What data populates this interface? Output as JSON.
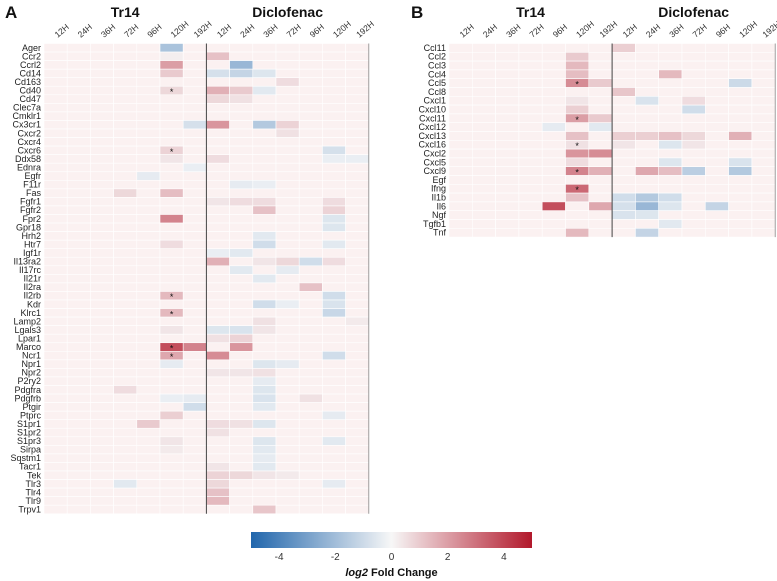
{
  "chart_data": [
    {
      "type": "heatmap",
      "panel": "A",
      "groups": [
        "Tr14",
        "Diclofenac"
      ],
      "columns": [
        "12H",
        "24H",
        "36H",
        "72H",
        "96H",
        "120H",
        "192H",
        "12H",
        "24H",
        "36H",
        "72H",
        "96H",
        "120H",
        "192H"
      ],
      "rows": [
        "Ager",
        "Ccr2",
        "Ccrl2",
        "Cd14",
        "Cd163",
        "Cd40",
        "Cd47",
        "Clec7a",
        "Cmklr1",
        "Cx3cr1",
        "Cxcr2",
        "Cxcr4",
        "Cxcr6",
        "Ddx58",
        "Ednra",
        "Egfr",
        "F11r",
        "Fas",
        "Fgfr1",
        "Fgfr2",
        "Fpr2",
        "Gpr18",
        "Hrh2",
        "Htr7",
        "Igf1r",
        "Il13ra2",
        "Il17rc",
        "Il21r",
        "Il2ra",
        "Il2rb",
        "Kdr",
        "Klrc1",
        "Lamp2",
        "Lgals3",
        "Lpar1",
        "Marco",
        "Ncr1",
        "Npr1",
        "Npr2",
        "P2ry2",
        "Pdgfra",
        "Pdgfrb",
        "Ptgir",
        "Ptprc",
        "S1pr1",
        "S1pr2",
        "S1pr3",
        "Sirpa",
        "Sqstm1",
        "Tacr1",
        "Tek",
        "Tlr3",
        "Tlr4",
        "Tlr9",
        "Trpv1"
      ],
      "values": [
        [
          0,
          0,
          0,
          0,
          0,
          -1.8,
          0,
          0,
          0,
          0,
          0,
          0,
          0,
          0
        ],
        [
          0,
          0,
          0,
          0,
          0,
          0.2,
          0,
          1.2,
          0,
          0,
          0,
          0,
          0,
          0
        ],
        [
          0,
          0,
          0,
          0,
          0,
          2.0,
          0,
          0,
          -2.2,
          0,
          0,
          0,
          0,
          0
        ],
        [
          0,
          0,
          0,
          0,
          0,
          1.0,
          0,
          -0.8,
          -1.2,
          -0.6,
          0,
          0,
          0,
          0
        ],
        [
          0,
          0,
          0,
          0,
          0,
          0,
          0,
          0,
          0,
          0,
          0.6,
          0,
          0,
          0
        ],
        [
          0,
          0,
          0,
          0,
          0,
          0.7,
          0,
          1.6,
          1.0,
          -0.5,
          0,
          0,
          0,
          0
        ],
        [
          0,
          0,
          0,
          0,
          0,
          0,
          0,
          0.7,
          0.5,
          0,
          0,
          0,
          0,
          0
        ],
        [
          0,
          0,
          0,
          0,
          0,
          0,
          0,
          0,
          0,
          0,
          0,
          0,
          0,
          0
        ],
        [
          0,
          0,
          0,
          0,
          0,
          0,
          0,
          0,
          0,
          0,
          0,
          0,
          0,
          0
        ],
        [
          0,
          0,
          0,
          0,
          0,
          0,
          -0.8,
          2.2,
          0,
          -1.6,
          0.8,
          0,
          0,
          0
        ],
        [
          0,
          0,
          0,
          0,
          0,
          0,
          0,
          0,
          0,
          0,
          0.5,
          0,
          0,
          0
        ],
        [
          0,
          0,
          0,
          0,
          0,
          0,
          0,
          0,
          0,
          0,
          0,
          0,
          0,
          0
        ],
        [
          0,
          0,
          0,
          0,
          0,
          0.8,
          0,
          0,
          0,
          0,
          0,
          0,
          -0.8,
          0
        ],
        [
          0,
          0,
          0,
          0,
          0,
          0.4,
          0,
          0.6,
          0,
          0,
          0,
          0,
          -0.3,
          -0.3
        ],
        [
          0,
          0,
          0,
          0,
          0,
          0,
          -0.3,
          0,
          0,
          0,
          0,
          0,
          0,
          0
        ],
        [
          0,
          0,
          0,
          0,
          -0.4,
          0,
          0,
          0,
          0,
          0,
          0,
          0,
          0,
          0
        ],
        [
          0,
          0,
          0,
          0,
          0,
          0,
          0,
          0,
          -0.4,
          -0.3,
          0,
          0,
          0,
          0
        ],
        [
          0,
          0,
          0,
          0.7,
          0,
          1.3,
          0,
          0,
          0,
          0,
          0,
          0,
          0,
          0
        ],
        [
          0,
          0,
          0,
          0,
          0,
          0,
          0,
          0.4,
          0.6,
          0.6,
          0,
          0,
          0.6,
          0
        ],
        [
          0,
          0,
          0,
          0,
          0,
          0,
          0,
          0,
          0,
          1.2,
          0,
          0,
          0.8,
          0
        ],
        [
          0,
          0,
          0,
          0,
          0,
          2.6,
          0,
          0,
          0,
          0,
          0,
          0,
          -0.6,
          0
        ],
        [
          0,
          0,
          0,
          0,
          0,
          0,
          0,
          0,
          0,
          0,
          0,
          0,
          -0.6,
          0
        ],
        [
          0,
          0,
          0,
          0,
          0,
          0,
          0,
          0,
          0,
          -0.5,
          0,
          0,
          0,
          0
        ],
        [
          0,
          0,
          0,
          0,
          0,
          0.6,
          0,
          0,
          0,
          -0.9,
          0,
          0,
          -0.5,
          0
        ],
        [
          0,
          0,
          0,
          0,
          0,
          0,
          0,
          -0.3,
          -0.5,
          0,
          0,
          0,
          0,
          0
        ],
        [
          0,
          0,
          0,
          0,
          0,
          0,
          0,
          1.6,
          0,
          0.4,
          0.7,
          -0.9,
          0.6,
          0
        ],
        [
          0,
          0,
          0,
          0,
          0,
          0,
          0,
          0,
          -0.5,
          0,
          -0.4,
          0,
          0,
          0
        ],
        [
          0,
          0,
          0,
          0,
          0,
          0,
          0,
          0,
          0,
          -0.5,
          0,
          0,
          0,
          0
        ],
        [
          0,
          0,
          0,
          0,
          0,
          0,
          0,
          0,
          0,
          0,
          0,
          1.2,
          0,
          0
        ],
        [
          0,
          0,
          0,
          0,
          0,
          1.4,
          0,
          0,
          0,
          0,
          0,
          0,
          -0.9,
          0
        ],
        [
          0,
          0,
          0,
          0,
          0,
          0,
          0,
          0,
          0,
          -0.9,
          -0.3,
          0,
          -0.7,
          0
        ],
        [
          0,
          0,
          0,
          0,
          0,
          1.4,
          0,
          0,
          0,
          0,
          0,
          0,
          -1.1,
          0
        ],
        [
          0,
          0,
          0,
          0,
          0,
          0,
          0,
          0,
          0,
          0.5,
          0,
          0,
          0,
          0.3
        ],
        [
          0,
          0,
          0,
          0,
          0,
          0.4,
          0,
          -0.6,
          -0.7,
          0.4,
          0,
          0,
          0,
          0
        ],
        [
          0,
          0,
          0,
          0,
          0,
          0,
          0,
          0.5,
          0.8,
          0,
          0,
          0,
          0,
          0
        ],
        [
          0,
          0,
          0,
          0,
          0,
          3.8,
          2.6,
          0,
          2.2,
          0,
          0,
          0,
          0,
          0
        ],
        [
          0,
          0,
          0,
          0,
          0,
          1.8,
          0,
          2.4,
          0,
          0,
          0,
          0,
          -0.9,
          0
        ],
        [
          0,
          0,
          0,
          0,
          0,
          -0.4,
          0,
          0,
          0,
          -0.6,
          -0.4,
          0,
          0,
          0
        ],
        [
          0,
          0,
          0,
          0,
          0,
          0,
          0,
          0.4,
          0.4,
          0.5,
          0,
          0,
          0,
          0
        ],
        [
          0,
          0,
          0,
          0,
          0,
          0,
          0,
          0,
          0,
          -0.4,
          0,
          0,
          0,
          0
        ],
        [
          0,
          0,
          0,
          0.6,
          0,
          0,
          0,
          0,
          0,
          -0.6,
          0,
          0,
          0,
          0
        ],
        [
          0,
          0,
          0,
          0,
          0,
          -0.3,
          -0.4,
          0,
          0,
          -0.7,
          0,
          0.5,
          0,
          0
        ],
        [
          0,
          0,
          0,
          0,
          0,
          0,
          -0.9,
          0,
          0,
          -0.5,
          0,
          0,
          0,
          0
        ],
        [
          0,
          0,
          0,
          0,
          0,
          0.9,
          0,
          0,
          0,
          0,
          0,
          0,
          -0.4,
          0
        ],
        [
          0,
          0,
          0,
          0,
          1.0,
          0,
          0,
          0.6,
          0.5,
          -0.6,
          0,
          0,
          0,
          0
        ],
        [
          0,
          0,
          0,
          0,
          0,
          0,
          0,
          0.5,
          0,
          0,
          0,
          0,
          0,
          0
        ],
        [
          0,
          0,
          0,
          0,
          0,
          0.4,
          0,
          0,
          0,
          -0.6,
          0,
          0,
          -0.5,
          0
        ],
        [
          0,
          0,
          0,
          0,
          0,
          0.3,
          0,
          0,
          0,
          -0.5,
          0,
          0,
          0,
          0
        ],
        [
          0,
          0,
          0,
          0,
          0,
          0,
          0,
          0,
          0,
          -0.4,
          0,
          0,
          0,
          0
        ],
        [
          0,
          0,
          0,
          0,
          0,
          0,
          0,
          0.4,
          0,
          -0.5,
          0,
          0,
          0,
          0
        ],
        [
          0,
          0,
          0,
          0,
          0,
          0,
          0,
          0.8,
          0.7,
          0.4,
          0.3,
          0,
          0,
          0
        ],
        [
          0,
          0,
          0,
          -0.5,
          0,
          0,
          0,
          0.7,
          0,
          0,
          0,
          0,
          -0.4,
          0
        ],
        [
          0,
          0,
          0,
          0,
          0,
          0,
          0,
          1.2,
          0,
          0,
          0,
          0,
          0,
          0
        ],
        [
          0,
          0,
          0,
          0,
          0,
          0,
          0,
          1.4,
          0,
          0,
          0,
          0,
          0,
          0
        ],
        [
          0,
          0,
          0,
          0,
          0,
          0,
          0,
          0,
          0,
          1.1,
          0,
          0,
          0,
          0
        ]
      ],
      "significant": [
        {
          "row": "Cd40",
          "column": 5
        },
        {
          "row": "Cxcr6",
          "column": 5
        },
        {
          "row": "Il2rb",
          "column": 5
        },
        {
          "row": "Klrc1",
          "column": 5
        },
        {
          "row": "Marco",
          "column": 5
        },
        {
          "row": "Ncr1",
          "column": 5
        }
      ],
      "significance_marker": "*"
    },
    {
      "type": "heatmap",
      "panel": "B",
      "groups": [
        "Tr14",
        "Diclofenac"
      ],
      "columns": [
        "12H",
        "24H",
        "36H",
        "72H",
        "96H",
        "120H",
        "192H",
        "12H",
        "24H",
        "36H",
        "72H",
        "96H",
        "120H",
        "192H"
      ],
      "rows": [
        "Ccl11",
        "Ccl2",
        "Ccl3",
        "Ccl4",
        "Ccl5",
        "Ccl8",
        "Cxcl1",
        "Cxcl10",
        "Cxcl11",
        "Cxcl12",
        "Cxcl13",
        "Cxcl16",
        "Cxcl2",
        "Cxcl5",
        "Cxcl9",
        "Egf",
        "Ifng",
        "Il1b",
        "Il6",
        "Ngf",
        "Tgfb1",
        "Tnf"
      ],
      "values": [
        [
          0,
          0,
          0,
          0,
          0,
          0,
          0,
          0.9,
          0,
          0,
          0,
          0,
          0,
          0
        ],
        [
          0,
          0,
          0,
          0,
          0,
          1.0,
          0,
          0,
          0,
          0,
          0,
          0,
          0,
          0
        ],
        [
          0,
          0,
          0,
          0,
          0,
          1.4,
          0,
          0,
          0,
          0,
          0,
          0,
          0,
          0
        ],
        [
          0,
          0,
          0,
          0,
          0,
          1.3,
          0,
          0,
          0,
          1.4,
          0,
          0,
          0,
          0
        ],
        [
          0,
          0,
          0,
          0,
          0,
          2.4,
          1.0,
          0,
          0,
          0,
          0,
          0,
          -1.0,
          0
        ],
        [
          0,
          0,
          0,
          0,
          0,
          0,
          0,
          1.1,
          0,
          0,
          0,
          0,
          0,
          0
        ],
        [
          0,
          0,
          0,
          0,
          0,
          0.4,
          0,
          0,
          -0.7,
          0,
          0.6,
          0,
          0,
          0
        ],
        [
          0,
          0,
          0,
          0,
          0,
          0.9,
          0,
          0,
          0,
          0,
          -0.9,
          0,
          0,
          0
        ],
        [
          0,
          0,
          0,
          0,
          0,
          2.0,
          1.0,
          0,
          0,
          0,
          0,
          0,
          0,
          0
        ],
        [
          0,
          0,
          0,
          0,
          -0.4,
          0,
          -0.5,
          0,
          0,
          0,
          0,
          0,
          0,
          0
        ],
        [
          0,
          0,
          0,
          0,
          0,
          1.2,
          0,
          0.9,
          0.9,
          1.2,
          0.7,
          0,
          1.6,
          0
        ],
        [
          0,
          0,
          0,
          0,
          0,
          0.5,
          0,
          0.4,
          0,
          -0.6,
          0.4,
          0,
          0,
          0
        ],
        [
          0,
          0,
          0,
          0,
          0,
          2.2,
          2.4,
          0,
          0,
          0,
          0,
          0,
          0,
          0
        ],
        [
          0,
          0,
          0,
          0,
          0,
          0.6,
          0,
          0,
          0,
          -0.6,
          0,
          0,
          -0.7,
          0
        ],
        [
          0,
          0,
          0,
          0,
          0,
          2.6,
          1.6,
          0,
          1.8,
          1.3,
          -1.4,
          0,
          -1.6,
          0
        ],
        [
          0,
          0,
          0,
          0,
          0,
          0,
          0,
          0,
          0,
          0,
          0,
          0,
          0,
          0
        ],
        [
          0,
          0,
          0,
          0,
          0,
          3.2,
          0,
          0,
          0,
          0,
          0,
          0,
          0,
          0
        ],
        [
          0,
          0,
          0,
          0,
          0,
          1.2,
          0,
          -0.9,
          -1.6,
          -0.9,
          0,
          0,
          0,
          0
        ],
        [
          0,
          0,
          0,
          0,
          3.8,
          0,
          1.8,
          -0.8,
          -2.2,
          -0.6,
          0,
          -1.2,
          0,
          0
        ],
        [
          0,
          0,
          0,
          0,
          0,
          0,
          0,
          -0.7,
          -0.6,
          0,
          0,
          0,
          0,
          0
        ],
        [
          0,
          0,
          0,
          0,
          0,
          0,
          0,
          0,
          0,
          -0.5,
          0,
          0,
          0,
          0
        ],
        [
          0,
          0,
          0,
          0,
          0,
          1.4,
          0,
          0,
          -1.2,
          0,
          0,
          0,
          0,
          0
        ]
      ],
      "significant": [
        {
          "row": "Ccl5",
          "column": 5
        },
        {
          "row": "Cxcl11",
          "column": 5
        },
        {
          "row": "Cxcl16",
          "column": 5
        },
        {
          "row": "Cxcl9",
          "column": 5
        },
        {
          "row": "Ifng",
          "column": 5
        }
      ],
      "significance_marker": "*"
    }
  ],
  "colorbar": {
    "range": [
      -5,
      5
    ],
    "ticks": [
      -4,
      -2,
      0,
      2,
      4
    ],
    "tick_labels": [
      "-4",
      "-2",
      "0",
      "2",
      "4"
    ],
    "label_prefix": "log2",
    "label_rest": " Fold Change",
    "colors": {
      "low": "#2166ac",
      "mid": "#f7f7f7",
      "high": "#b2182b",
      "zero_cell": "#fbf1f1",
      "grid": "#ffffff",
      "divider": "#444444"
    }
  }
}
